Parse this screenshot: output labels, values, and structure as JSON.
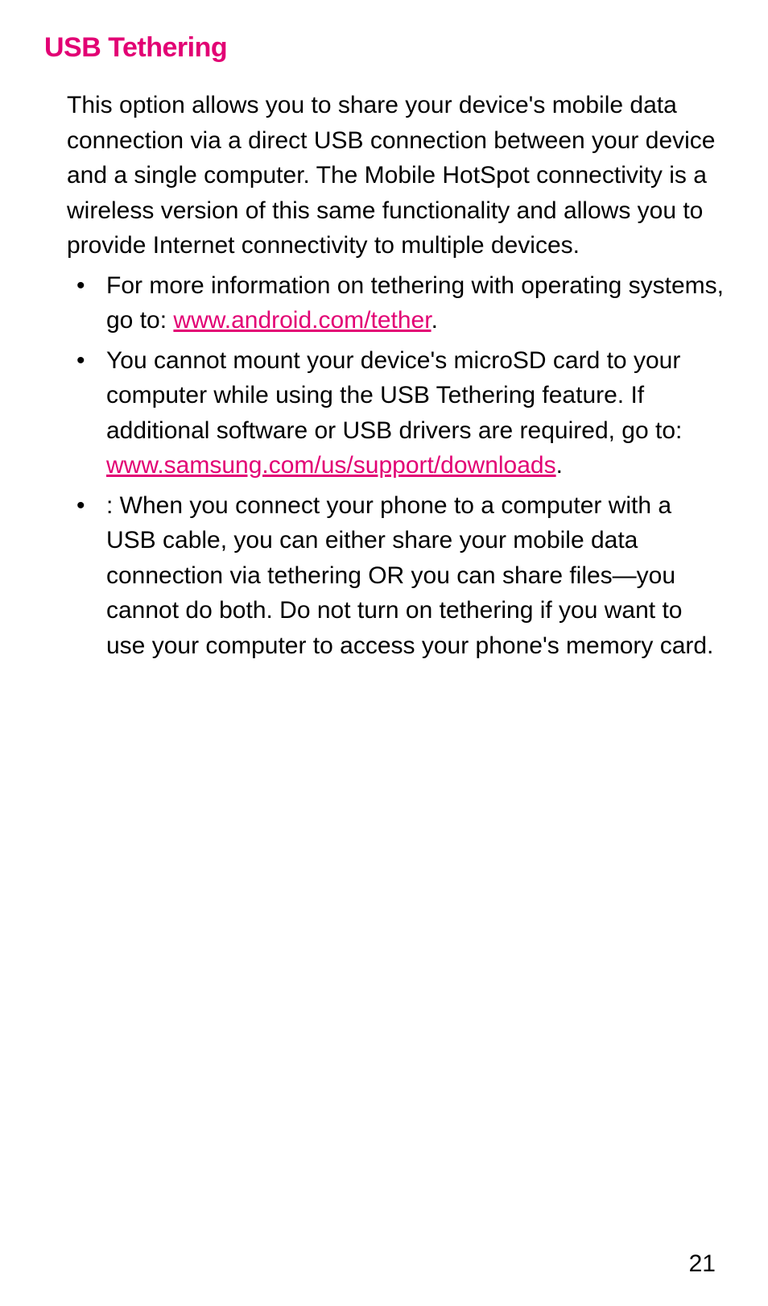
{
  "heading": "USB Tethering",
  "intro": "This option allows you to share your device's mobile data connection via a direct USB connection between your device and a single computer. The Mobile HotSpot connectivity is a wireless version of this same functionality and allows you to provide Internet connectivity to multiple devices.",
  "bullets": [
    {
      "prefix": "For more information on tethering with operating systems, go to: ",
      "link": "www.android.com/tether",
      "suffix": "."
    },
    {
      "prefix": "You cannot mount your device's microSD card to your computer while using the USB Tethering feature. If additional software or USB drivers are required, go to: ",
      "link": "www.samsung.com/us/support/downloads",
      "suffix": "."
    },
    {
      "prefix": ": When you connect your phone to a computer with a USB cable, you can either share your mobile data connection via tethering OR you can share files—you cannot do both. Do not turn on tethering if you want to use your computer to access your phone's memory card.",
      "link": "",
      "suffix": ""
    }
  ],
  "page_number": "21",
  "colors": {
    "accent": "#e20074",
    "text": "#000000",
    "background": "#ffffff"
  },
  "typography": {
    "heading_fontsize": 34,
    "body_fontsize": 30,
    "heading_weight": "bold",
    "line_height": 1.45
  }
}
